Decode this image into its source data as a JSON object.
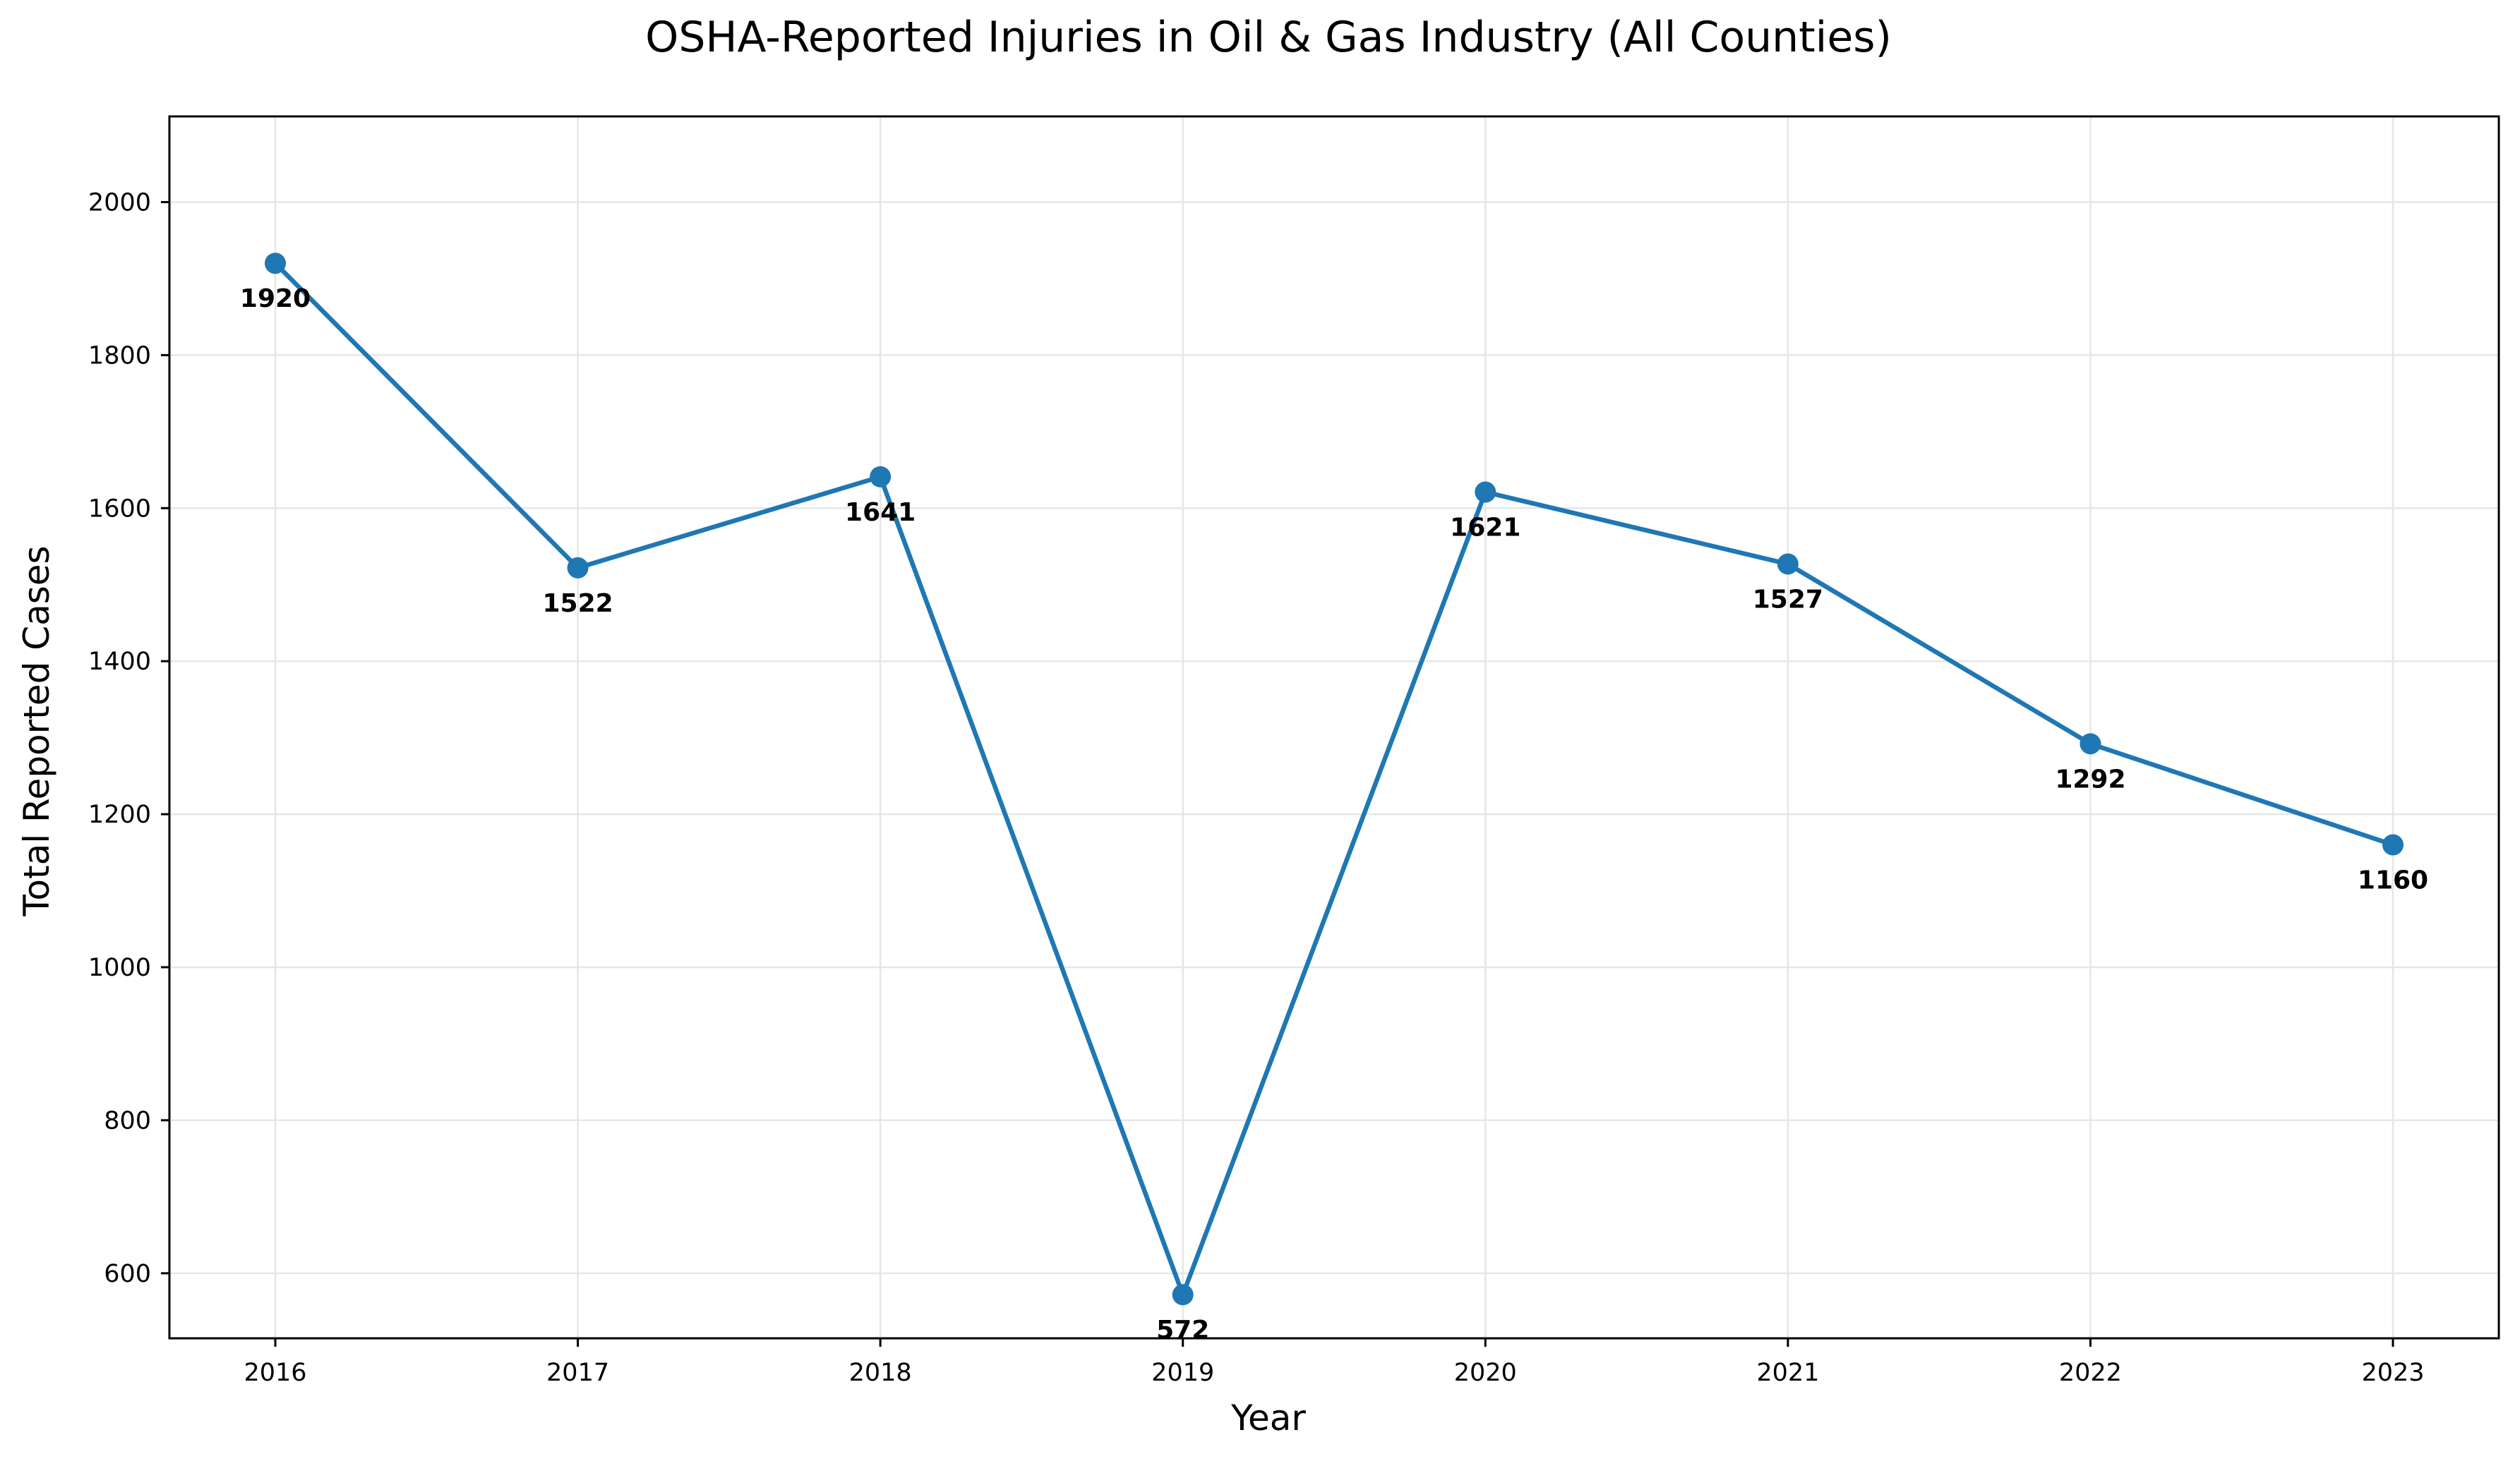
{
  "chart_data": {
    "type": "line",
    "title": "OSHA-Reported Injuries in Oil & Gas Industry (All Counties)",
    "xlabel": "Year",
    "ylabel": "Total Reported Cases",
    "x": [
      2016,
      2017,
      2018,
      2019,
      2020,
      2021,
      2022,
      2023
    ],
    "values": [
      1920,
      1522,
      1641,
      572,
      1621,
      1527,
      1292,
      1160
    ],
    "data_labels": [
      "1920",
      "1522",
      "1641",
      "572",
      "1621",
      "1527",
      "1292",
      "1160"
    ],
    "x_ticks": [
      "2016",
      "2017",
      "2018",
      "2019",
      "2020",
      "2021",
      "2022",
      "2023"
    ],
    "y_ticks": [
      600,
      800,
      1000,
      1200,
      1400,
      1600,
      1800,
      2000
    ],
    "y_tick_labels": [
      "600",
      "800",
      "1000",
      "1200",
      "1400",
      "1600",
      "1800",
      "2000"
    ],
    "xlim": [
      2015.65,
      2023.35
    ],
    "ylim": [
      515,
      2112
    ],
    "grid": true,
    "legend": "none",
    "colors": {
      "line": "#1f77b4",
      "marker": "#1f77b4",
      "grid": "#e6e6e6",
      "axes": "#000000",
      "text": "#000000"
    }
  }
}
